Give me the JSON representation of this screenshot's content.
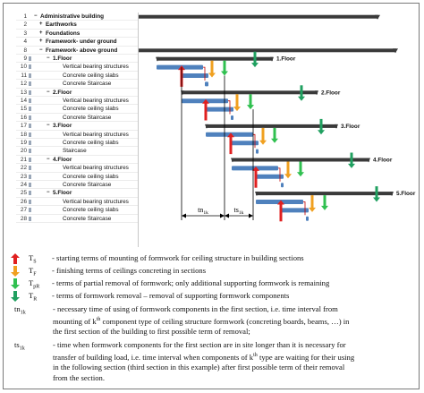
{
  "colors": {
    "summary_bar": "#3a3a3a",
    "task_bar": "#4f81bd",
    "link_line": "#c00000",
    "arrow_start": "#e02020",
    "arrow_finish": "#f0a020",
    "arrow_partial": "#30c050",
    "arrow_removal": "#20a060"
  },
  "tree": {
    "rows": [
      {
        "n": "1",
        "label": "Administrative building",
        "level": 0,
        "toggle": "minus",
        "bold": true
      },
      {
        "n": "2",
        "label": "Earthworks",
        "level": 1,
        "toggle": "plus",
        "bold": true
      },
      {
        "n": "3",
        "label": "Foundations",
        "level": 1,
        "toggle": "plus",
        "bold": true
      },
      {
        "n": "4",
        "label": "Framework- under ground",
        "level": 1,
        "toggle": "plus",
        "bold": true
      },
      {
        "n": "8",
        "label": "Framework- above ground",
        "level": 1,
        "toggle": "minus",
        "bold": true
      },
      {
        "n": "9",
        "label": "1.Floor",
        "level": 2,
        "toggle": "minus",
        "bold": true
      },
      {
        "n": "10",
        "label": "Vertical bearing structures",
        "level": 3,
        "toggle": "",
        "bold": false
      },
      {
        "n": "11",
        "label": "Concrete ceiling slabs",
        "level": 3,
        "toggle": "",
        "bold": false
      },
      {
        "n": "12",
        "label": "Concrete Staircase",
        "level": 3,
        "toggle": "",
        "bold": false
      },
      {
        "n": "13",
        "label": "2.Floor",
        "level": 2,
        "toggle": "minus",
        "bold": true
      },
      {
        "n": "14",
        "label": "Vertical bearing structures",
        "level": 3,
        "toggle": "",
        "bold": false
      },
      {
        "n": "15",
        "label": "Concrete ceiling slabs",
        "level": 3,
        "toggle": "",
        "bold": false
      },
      {
        "n": "16",
        "label": "Concrete Staircase",
        "level": 3,
        "toggle": "",
        "bold": false
      },
      {
        "n": "17",
        "label": "3.Floor",
        "level": 2,
        "toggle": "minus",
        "bold": true
      },
      {
        "n": "18",
        "label": "Vertical bearing structures",
        "level": 3,
        "toggle": "",
        "bold": false
      },
      {
        "n": "19",
        "label": "Concrete ceiling slabs",
        "level": 3,
        "toggle": "",
        "bold": false
      },
      {
        "n": "20",
        "label": "Staircase",
        "level": 3,
        "toggle": "",
        "bold": false
      },
      {
        "n": "21",
        "label": "4.Floor",
        "level": 2,
        "toggle": "minus",
        "bold": true
      },
      {
        "n": "22",
        "label": "Vertical bearing structures",
        "level": 3,
        "toggle": "",
        "bold": false
      },
      {
        "n": "23",
        "label": "Concrete ceiling slabs",
        "level": 3,
        "toggle": "",
        "bold": false
      },
      {
        "n": "24",
        "label": "Concrete Staircase",
        "level": 3,
        "toggle": "",
        "bold": false
      },
      {
        "n": "25",
        "label": "5.Floor",
        "level": 2,
        "toggle": "minus",
        "bold": true
      },
      {
        "n": "26",
        "label": "Vertical bearing structures",
        "level": 3,
        "toggle": "",
        "bold": false
      },
      {
        "n": "27",
        "label": "Concrete ceiling slabs",
        "level": 3,
        "toggle": "",
        "bold": false
      },
      {
        "n": "28",
        "label": "Concrete Staircase",
        "level": 3,
        "toggle": "",
        "bold": false
      }
    ]
  },
  "floor_labels": [
    "1.Floor",
    "2.Floor",
    "3.Floor",
    "4.Floor",
    "5.Floor"
  ],
  "dimensions": {
    "tn_base": "tn",
    "tn_sub": "1k",
    "ts_base": "ts",
    "ts_sub": "1k"
  },
  "legend": {
    "items": [
      {
        "sym_base": "T",
        "sym_sub": "S",
        "color": "#e02020",
        "text": "- starting terms of mounting of formwork for ceiling structure in building sections"
      },
      {
        "sym_base": "T",
        "sym_sub": "F",
        "color": "#f0a020",
        "text": "- finishing terms of ceilings concreting in sections"
      },
      {
        "sym_base": "T",
        "sym_sub": "pR",
        "color": "#30c050",
        "text": "- terms of partial removal of formwork; only additional supporting formwork is remaining"
      },
      {
        "sym_base": "T",
        "sym_sub": "R",
        "color": "#20a060",
        "text": "- terms of formwork removal – removal of supporting formwork components"
      }
    ],
    "tn": {
      "term_base": "tn",
      "term_sub": "1k",
      "line1": "- necessary time of using of formwork components in the first section, i.e. time interval from",
      "line2_a": "mounting of k",
      "line2_sup": "th",
      "line2_b": " component type of ceiling structure formwork (concreting boards, beams, …) in",
      "line3": "the first section of the building to first possible term of removal;"
    },
    "ts": {
      "term_base": "ts",
      "term_sub": "1k",
      "line1": "- time when formwork components for the first section are in site longer than it is necessary for",
      "line2_a": "transfer of building load, i.e. time interval when components of k",
      "line2_sup": "th",
      "line2_b": " type are waiting for their using",
      "line3": "in the following section (third section in this example) after first possible term of their removal",
      "line4": "from the section."
    }
  }
}
